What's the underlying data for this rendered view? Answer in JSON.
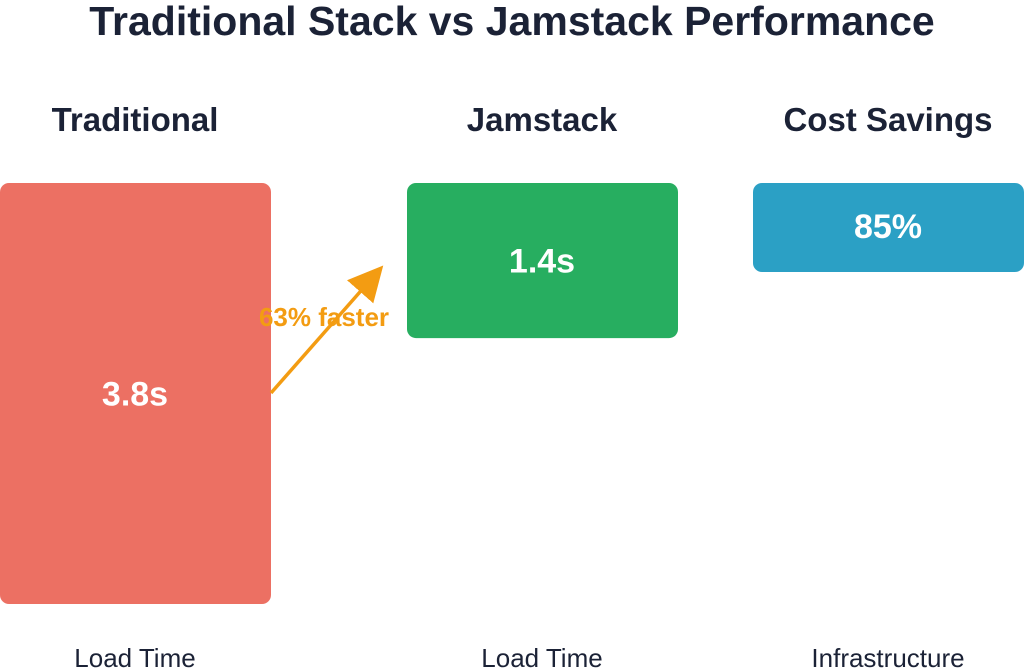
{
  "chart_data": {
    "type": "bar",
    "title": "Traditional Stack vs Jamstack Performance",
    "groups": [
      {
        "header": "Traditional",
        "bar_label": "3.8s",
        "value": 3.8,
        "bottom_label": "Load Time",
        "color": "#ec7063"
      },
      {
        "header": "Jamstack",
        "bar_label": "1.4s",
        "value": 1.4,
        "bottom_label": "Load Time",
        "color": "#27ae60"
      },
      {
        "header": "Cost Savings",
        "bar_label": "85%",
        "value": 85,
        "bottom_label": "Infrastructure",
        "color": "#2ba0c5"
      }
    ],
    "annotation": {
      "text": "63% faster",
      "color": "#f39c12"
    },
    "ylim": [
      0,
      3.8
    ]
  }
}
